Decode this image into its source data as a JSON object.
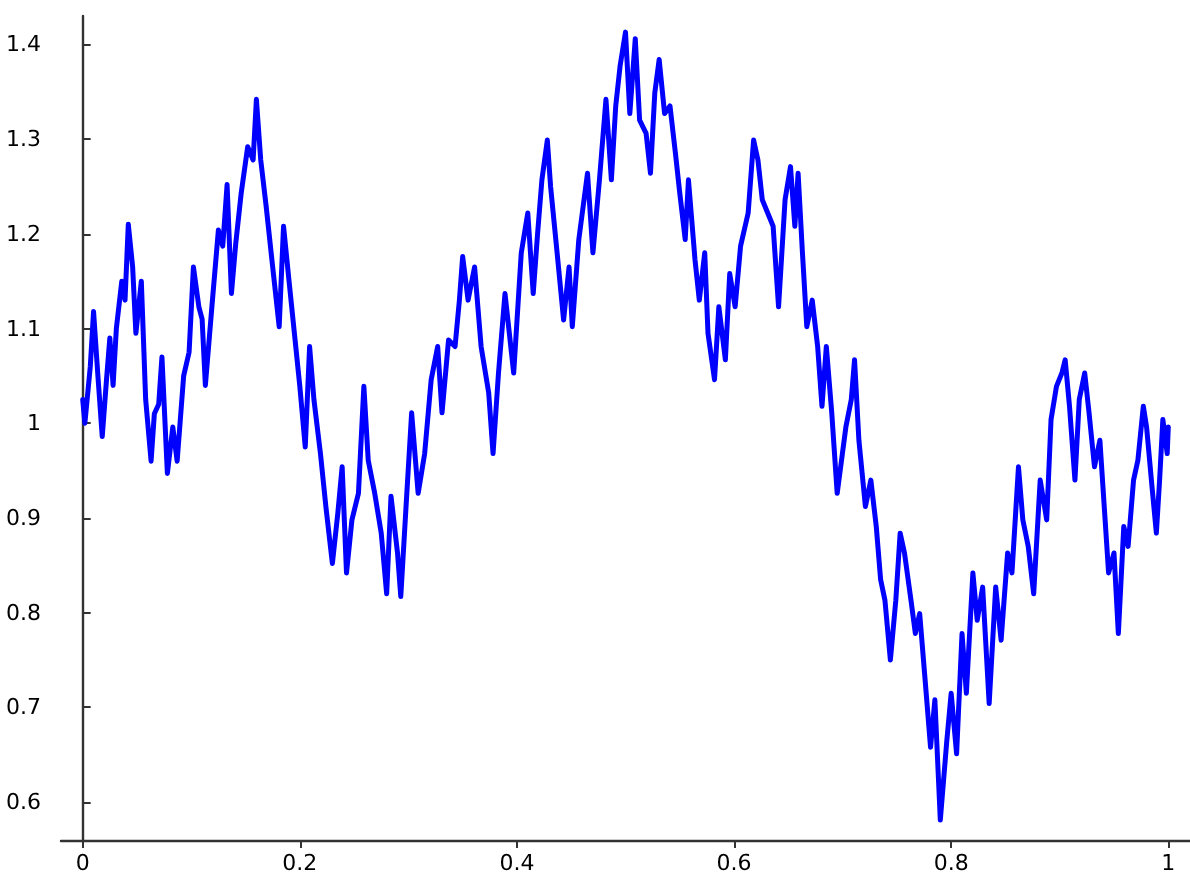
{
  "chart_data": {
    "type": "line",
    "xlim": [
      -0.02,
      1.02
    ],
    "ylim": [
      0.56,
      1.43
    ],
    "xticks": [
      0,
      0.2,
      0.4,
      0.6,
      0.8,
      1
    ],
    "yticks": [
      0.6,
      0.7,
      0.8,
      0.9,
      1,
      1.1,
      1.2,
      1.3,
      1.4
    ],
    "grid": false,
    "marker": "none",
    "line_style": "solid",
    "series": [
      {
        "color": "#0000ff",
        "x": [
          0,
          0.002,
          0.007,
          0.01,
          0.014,
          0.018,
          0.022,
          0.025,
          0.028,
          0.031,
          0.036,
          0.039,
          0.042,
          0.046,
          0.049,
          0.054,
          0.058,
          0.063,
          0.066,
          0.07,
          0.073,
          0.078,
          0.083,
          0.087,
          0.093,
          0.098,
          0.102,
          0.107,
          0.11,
          0.113,
          0.119,
          0.125,
          0.129,
          0.133,
          0.137,
          0.141,
          0.146,
          0.152,
          0.157,
          0.16,
          0.164,
          0.169,
          0.175,
          0.181,
          0.185,
          0.19,
          0.195,
          0.2,
          0.205,
          0.209,
          0.213,
          0.219,
          0.224,
          0.23,
          0.235,
          0.239,
          0.243,
          0.248,
          0.254,
          0.259,
          0.263,
          0.269,
          0.275,
          0.28,
          0.284,
          0.29,
          0.293,
          0.298,
          0.303,
          0.309,
          0.315,
          0.321,
          0.327,
          0.331,
          0.337,
          0.343,
          0.347,
          0.35,
          0.355,
          0.361,
          0.367,
          0.374,
          0.378,
          0.383,
          0.389,
          0.393,
          0.397,
          0.404,
          0.41,
          0.415,
          0.419,
          0.423,
          0.428,
          0.431,
          0.437,
          0.443,
          0.448,
          0.451,
          0.457,
          0.465,
          0.47,
          0.476,
          0.482,
          0.487,
          0.491,
          0.495,
          0.5,
          0.504,
          0.509,
          0.513,
          0.519,
          0.523,
          0.527,
          0.531,
          0.536,
          0.541,
          0.546,
          0.55,
          0.555,
          0.558,
          0.564,
          0.568,
          0.573,
          0.576,
          0.582,
          0.586,
          0.592,
          0.596,
          0.601,
          0.606,
          0.613,
          0.618,
          0.622,
          0.626,
          0.636,
          0.641,
          0.647,
          0.652,
          0.656,
          0.659,
          0.663,
          0.667,
          0.672,
          0.677,
          0.681,
          0.685,
          0.69,
          0.695,
          0.699,
          0.703,
          0.708,
          0.711,
          0.715,
          0.721,
          0.726,
          0.731,
          0.735,
          0.739,
          0.744,
          0.749,
          0.753,
          0.757,
          0.763,
          0.767,
          0.771,
          0.776,
          0.781,
          0.785,
          0.79,
          0.796,
          0.8,
          0.805,
          0.81,
          0.814,
          0.82,
          0.824,
          0.829,
          0.835,
          0.841,
          0.846,
          0.852,
          0.856,
          0.862,
          0.866,
          0.871,
          0.876,
          0.882,
          0.888,
          0.892,
          0.897,
          0.902,
          0.905,
          0.909,
          0.914,
          0.918,
          0.923,
          0.927,
          0.932,
          0.937,
          0.941,
          0.945,
          0.95,
          0.954,
          0.959,
          0.963,
          0.968,
          0.972,
          0.977,
          0.98,
          0.985,
          0.989,
          0.992,
          0.995,
          0.999,
          1.0
        ],
        "values": [
          1.025,
          1.0,
          1.06,
          1.118,
          1.05,
          0.986,
          1.047,
          1.09,
          1.04,
          1.1,
          1.15,
          1.13,
          1.21,
          1.165,
          1.095,
          1.15,
          1.025,
          0.96,
          1.01,
          1.02,
          1.07,
          0.947,
          0.996,
          0.96,
          1.05,
          1.075,
          1.165,
          1.123,
          1.11,
          1.04,
          1.123,
          1.204,
          1.187,
          1.252,
          1.137,
          1.19,
          1.243,
          1.292,
          1.278,
          1.342,
          1.278,
          1.229,
          1.165,
          1.102,
          1.208,
          1.151,
          1.095,
          1.039,
          0.975,
          1.081,
          1.025,
          0.968,
          0.912,
          0.852,
          0.905,
          0.954,
          0.842,
          0.898,
          0.926,
          1.039,
          0.961,
          0.926,
          0.884,
          0.82,
          0.923,
          0.863,
          0.817,
          0.915,
          1.011,
          0.926,
          0.968,
          1.046,
          1.081,
          1.011,
          1.088,
          1.081,
          1.13,
          1.176,
          1.13,
          1.165,
          1.081,
          1.032,
          0.968,
          1.053,
          1.137,
          1.095,
          1.053,
          1.18,
          1.222,
          1.137,
          1.2,
          1.257,
          1.299,
          1.25,
          1.18,
          1.109,
          1.165,
          1.102,
          1.194,
          1.264,
          1.18,
          1.257,
          1.342,
          1.257,
          1.335,
          1.377,
          1.413,
          1.327,
          1.406,
          1.32,
          1.306,
          1.264,
          1.349,
          1.384,
          1.327,
          1.335,
          1.285,
          1.243,
          1.194,
          1.257,
          1.173,
          1.13,
          1.18,
          1.095,
          1.046,
          1.123,
          1.067,
          1.158,
          1.123,
          1.187,
          1.222,
          1.299,
          1.278,
          1.236,
          1.208,
          1.123,
          1.236,
          1.271,
          1.208,
          1.264,
          1.18,
          1.102,
          1.13,
          1.081,
          1.018,
          1.081,
          1.011,
          0.926,
          0.961,
          0.996,
          1.025,
          1.067,
          0.982,
          0.912,
          0.94,
          0.891,
          0.835,
          0.813,
          0.75,
          0.813,
          0.884,
          0.863,
          0.813,
          0.778,
          0.799,
          0.729,
          0.658,
          0.708,
          0.581,
          0.665,
          0.715,
          0.651,
          0.778,
          0.715,
          0.842,
          0.792,
          0.827,
          0.704,
          0.827,
          0.771,
          0.863,
          0.842,
          0.954,
          0.898,
          0.87,
          0.82,
          0.94,
          0.898,
          1.004,
          1.039,
          1.053,
          1.067,
          1.018,
          0.94,
          1.025,
          1.053,
          1.011,
          0.954,
          0.982,
          0.912,
          0.842,
          0.863,
          0.778,
          0.891,
          0.87,
          0.94,
          0.961,
          1.018,
          0.996,
          0.933,
          0.884,
          0.94,
          1.004,
          0.968,
          0.996
        ]
      }
    ]
  }
}
